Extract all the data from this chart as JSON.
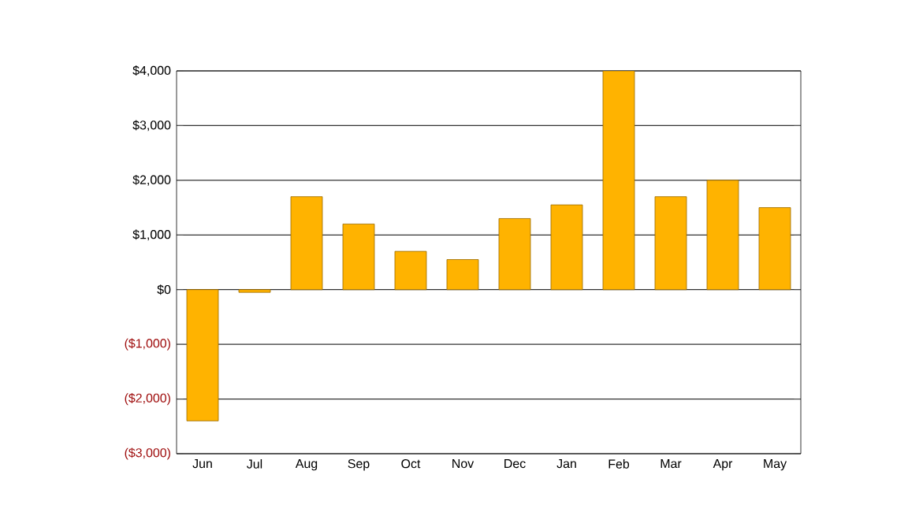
{
  "chart_data": {
    "type": "bar",
    "categories": [
      "Jun",
      "Jul",
      "Aug",
      "Sep",
      "Oct",
      "Nov",
      "Dec",
      "Jan",
      "Feb",
      "Mar",
      "Apr",
      "May"
    ],
    "values": [
      -2400,
      -50,
      1700,
      1200,
      700,
      550,
      1300,
      1550,
      4000,
      1700,
      2000,
      1500
    ],
    "color": "#ffb300",
    "ylim": [
      -3000,
      4000
    ],
    "yticks": [
      {
        "value": -3000,
        "label": "($3,000)"
      },
      {
        "value": -2000,
        "label": "($2,000)"
      },
      {
        "value": -1000,
        "label": "($1,000)"
      },
      {
        "value": 0,
        "label": "$0"
      },
      {
        "value": 1000,
        "label": "$1,000"
      },
      {
        "value": 2000,
        "label": "$2,000"
      },
      {
        "value": 3000,
        "label": "$3,000"
      },
      {
        "value": 4000,
        "label": "$4,000"
      }
    ],
    "grid": "y"
  }
}
